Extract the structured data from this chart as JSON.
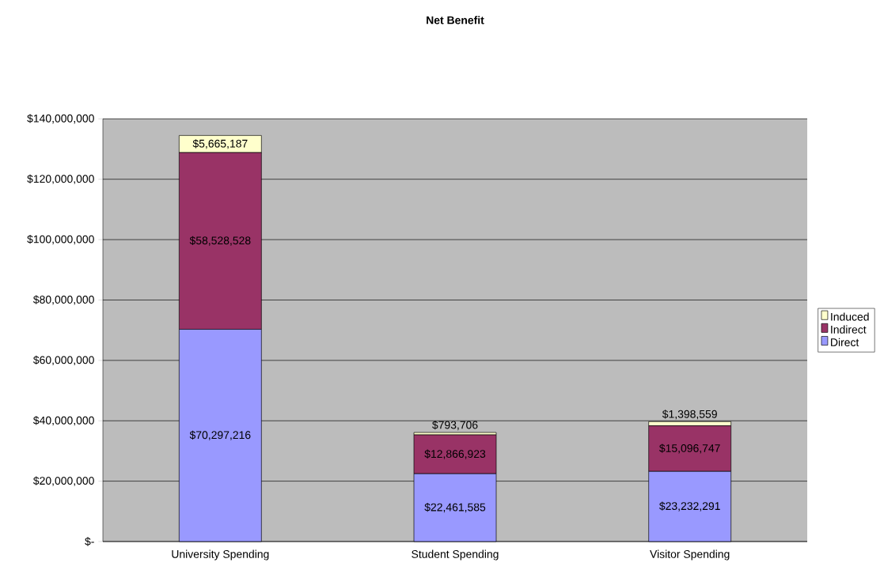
{
  "chart_data": {
    "type": "bar",
    "title": "Net Benefit",
    "stacked": true,
    "categories": [
      "University Spending",
      "Student Spending",
      "Visitor Spending"
    ],
    "series": [
      {
        "name": "Direct",
        "color": "#9999ff",
        "values": [
          70297216,
          22461585,
          23232291
        ],
        "value_labels": [
          "$70,297,216",
          "$22,461,585",
          "$23,232,291"
        ]
      },
      {
        "name": "Indirect",
        "color": "#993366",
        "values": [
          58528528,
          12866923,
          15096747
        ],
        "value_labels": [
          "$58,528,528",
          "$12,866,923",
          "$15,096,747"
        ]
      },
      {
        "name": "Induced",
        "color": "#ffffcc",
        "values": [
          5665187,
          793706,
          1398559
        ],
        "value_labels": [
          "$5,665,187",
          "$793,706",
          "$1,398,559"
        ]
      }
    ],
    "ylim": [
      0,
      140000000
    ],
    "yticks": [
      {
        "value": 0,
        "label": "$-"
      },
      {
        "value": 20000000,
        "label": "$20,000,000"
      },
      {
        "value": 40000000,
        "label": "$40,000,000"
      },
      {
        "value": 60000000,
        "label": "$60,000,000"
      },
      {
        "value": 80000000,
        "label": "$80,000,000"
      },
      {
        "value": 100000000,
        "label": "$100,000,000"
      },
      {
        "value": 120000000,
        "label": "$120,000,000"
      },
      {
        "value": 140000000,
        "label": "$140,000,000"
      }
    ],
    "grid": "y",
    "legend": "right"
  }
}
